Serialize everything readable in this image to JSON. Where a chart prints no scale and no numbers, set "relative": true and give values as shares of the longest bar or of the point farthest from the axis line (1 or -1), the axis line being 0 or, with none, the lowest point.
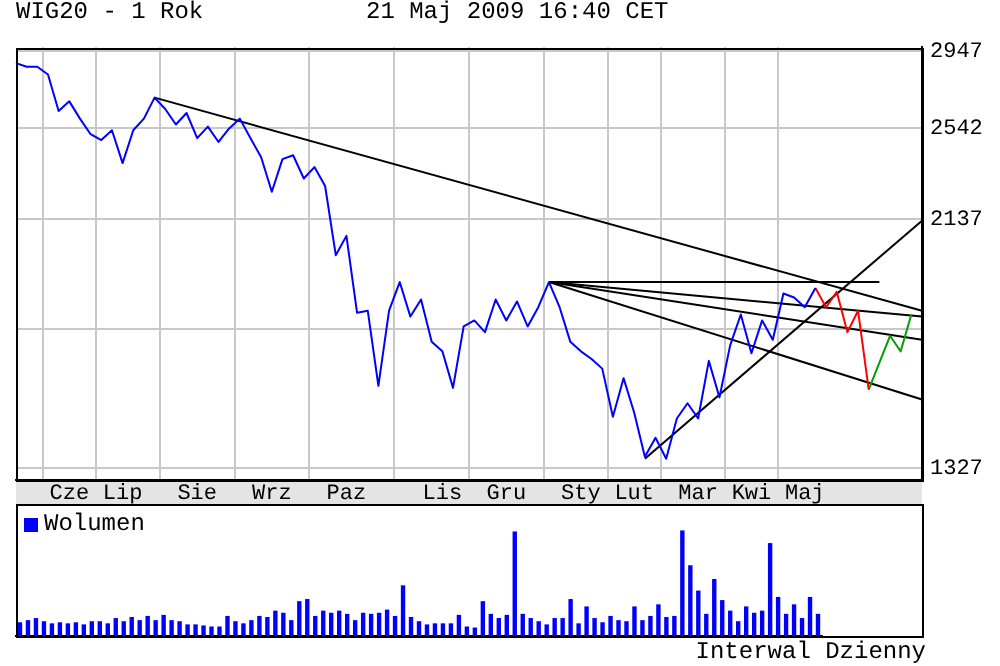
{
  "chart_data": [
    {
      "type": "line",
      "title": "WIG20 - 1 Rok",
      "subtitle": "21 Maj 2009 16:40 CET",
      "annotations": [
        "Interwal Dzienny"
      ],
      "log": true,
      "grid": true,
      "marker": "none",
      "line_style": "solid",
      "categories": [
        null,
        null,
        null,
        null,
        null,
        "Cze",
        null,
        null,
        null,
        null,
        "Lip",
        null,
        null,
        null,
        null,
        null,
        null,
        "Sie",
        null,
        null,
        null,
        null,
        null,
        null,
        "Wrz",
        null,
        null,
        null,
        null,
        null,
        null,
        "Paz",
        null,
        null,
        null,
        null,
        null,
        null,
        null,
        null,
        "Lis",
        null,
        null,
        null,
        null,
        null,
        "Gru",
        null,
        null,
        null,
        null,
        null,
        null,
        "Sty",
        null,
        null,
        null,
        null,
        "Lut",
        null,
        null,
        null,
        null,
        null,
        "Mar",
        null,
        null,
        null,
        null,
        "Kwi",
        null,
        null,
        null,
        null,
        "Maj",
        null,
        null,
        null,
        null,
        null,
        null,
        null,
        null,
        null,
        null,
        null
      ],
      "ylim": [
        1298,
        2969
      ],
      "yticks": [
        1327,
        {
          "value": 1732,
          "label": null
        },
        2137,
        2542,
        2947
      ],
      "series": [
        {
          "type": "line",
          "color": "#0000ff",
          "values": [
            2880,
            2860,
            2860,
            2818,
            2628,
            2677,
            2590,
            2514,
            2486,
            2533,
            2379,
            2533,
            2590,
            2696,
            2638,
            2561,
            2618,
            2495,
            2551,
            2477,
            2542,
            2590,
            2495,
            2406,
            2252,
            2397,
            2415,
            2310,
            2361,
            2277,
            1995,
            2070,
            1787,
            1794,
            1554,
            1794,
            1895,
            1774,
            1833,
            1691,
            1660,
            1548,
            1741,
            1761,
            1722,
            1833,
            1761,
            1826,
            1741,
            1806,
            1895,
            1806,
            1691,
            1660,
            1636,
            1606,
            1465,
            1577,
            1476,
            1357,
            1407,
            1352,
            1460,
            1503,
            1460,
            1630,
            1520,
            1679,
            1781,
            1654,
            1761,
            1697,
            1854,
            1840,
            1806,
            1874,
            null,
            null,
            null,
            null,
            null,
            null,
            null,
            null,
            null,
            null
          ]
        },
        {
          "type": "line",
          "color": "#ff0000",
          "values": [
            null,
            null,
            null,
            null,
            null,
            null,
            null,
            null,
            null,
            null,
            null,
            null,
            null,
            null,
            null,
            null,
            null,
            null,
            null,
            null,
            null,
            null,
            null,
            null,
            null,
            null,
            null,
            null,
            null,
            null,
            null,
            null,
            null,
            null,
            null,
            null,
            null,
            null,
            null,
            null,
            null,
            null,
            null,
            null,
            null,
            null,
            null,
            null,
            null,
            null,
            null,
            null,
            null,
            null,
            null,
            null,
            null,
            null,
            null,
            null,
            null,
            null,
            null,
            null,
            null,
            null,
            null,
            null,
            null,
            null,
            null,
            null,
            null,
            null,
            null,
            1874,
            1806,
            1860,
            1722,
            1794,
            1543,
            null,
            null,
            null,
            null,
            null
          ]
        },
        {
          "type": "line",
          "color": "#00a000",
          "values": [
            null,
            null,
            null,
            null,
            null,
            null,
            null,
            null,
            null,
            null,
            null,
            null,
            null,
            null,
            null,
            null,
            null,
            null,
            null,
            null,
            null,
            null,
            null,
            null,
            null,
            null,
            null,
            null,
            null,
            null,
            null,
            null,
            null,
            null,
            null,
            null,
            null,
            null,
            null,
            null,
            null,
            null,
            null,
            null,
            null,
            null,
            null,
            null,
            null,
            null,
            null,
            null,
            null,
            null,
            null,
            null,
            null,
            null,
            null,
            null,
            null,
            null,
            null,
            null,
            null,
            null,
            null,
            null,
            null,
            null,
            null,
            null,
            null,
            null,
            null,
            null,
            null,
            null,
            null,
            null,
            1543,
            null,
            1710,
            1660,
            1781,
            null
          ]
        },
        {
          "type": "line",
          "color": "#000000",
          "values": [
            null,
            null,
            null,
            null,
            null,
            null,
            null,
            null,
            null,
            null,
            null,
            null,
            null,
            2696,
            null,
            null,
            null,
            null,
            null,
            null,
            null,
            null,
            null,
            null,
            null,
            null,
            null,
            null,
            null,
            null,
            null,
            null,
            null,
            null,
            null,
            null,
            null,
            null,
            null,
            null,
            null,
            null,
            null,
            null,
            null,
            null,
            null,
            null,
            null,
            null,
            null,
            null,
            null,
            null,
            null,
            null,
            null,
            null,
            null,
            null,
            null,
            null,
            null,
            null,
            null,
            null,
            null,
            null,
            null,
            null,
            null,
            null,
            null,
            null,
            null,
            null,
            null,
            null,
            null,
            null,
            null,
            null,
            null,
            null,
            null,
            1794
          ]
        },
        {
          "type": "line",
          "color": "#000000",
          "values": [
            null,
            null,
            null,
            null,
            null,
            null,
            null,
            null,
            null,
            null,
            null,
            null,
            null,
            null,
            null,
            null,
            null,
            null,
            null,
            null,
            null,
            null,
            null,
            null,
            null,
            null,
            null,
            null,
            null,
            null,
            null,
            null,
            null,
            null,
            null,
            null,
            null,
            null,
            null,
            null,
            null,
            null,
            null,
            null,
            null,
            null,
            null,
            null,
            null,
            null,
            1895,
            null,
            null,
            null,
            null,
            null,
            null,
            null,
            null,
            null,
            null,
            null,
            null,
            null,
            null,
            null,
            null,
            null,
            null,
            null,
            null,
            null,
            null,
            null,
            null,
            null,
            null,
            null,
            null,
            null,
            null,
            1895,
            null,
            null,
            null,
            null
          ]
        },
        {
          "type": "line",
          "color": "#000000",
          "values": [
            null,
            null,
            null,
            null,
            null,
            null,
            null,
            null,
            null,
            null,
            null,
            null,
            null,
            null,
            null,
            null,
            null,
            null,
            null,
            null,
            null,
            null,
            null,
            null,
            null,
            null,
            null,
            null,
            null,
            null,
            null,
            null,
            null,
            null,
            null,
            null,
            null,
            null,
            null,
            null,
            null,
            null,
            null,
            null,
            null,
            null,
            null,
            null,
            null,
            null,
            1895,
            null,
            null,
            null,
            null,
            null,
            null,
            null,
            null,
            null,
            null,
            null,
            null,
            null,
            null,
            null,
            null,
            null,
            null,
            null,
            null,
            null,
            null,
            null,
            null,
            null,
            null,
            null,
            null,
            null,
            null,
            null,
            null,
            null,
            null,
            1774
          ]
        },
        {
          "type": "line",
          "color": "#000000",
          "values": [
            null,
            null,
            null,
            null,
            null,
            null,
            null,
            null,
            null,
            null,
            null,
            null,
            null,
            null,
            null,
            null,
            null,
            null,
            null,
            null,
            null,
            null,
            null,
            null,
            null,
            null,
            null,
            null,
            null,
            null,
            null,
            null,
            null,
            null,
            null,
            null,
            null,
            null,
            null,
            null,
            null,
            null,
            null,
            null,
            null,
            null,
            null,
            null,
            null,
            null,
            1895,
            null,
            null,
            null,
            null,
            null,
            null,
            null,
            null,
            null,
            null,
            null,
            null,
            null,
            null,
            null,
            null,
            null,
            null,
            null,
            null,
            null,
            null,
            null,
            null,
            null,
            null,
            null,
            null,
            null,
            null,
            null,
            null,
            null,
            null,
            1697
          ]
        },
        {
          "type": "line",
          "color": "#000000",
          "values": [
            null,
            null,
            null,
            null,
            null,
            null,
            null,
            null,
            null,
            null,
            null,
            null,
            null,
            null,
            null,
            null,
            null,
            null,
            null,
            null,
            null,
            null,
            null,
            null,
            null,
            null,
            null,
            null,
            null,
            null,
            null,
            null,
            null,
            null,
            null,
            null,
            null,
            null,
            null,
            null,
            null,
            null,
            null,
            null,
            null,
            null,
            null,
            null,
            null,
            null,
            1895,
            null,
            null,
            null,
            null,
            null,
            null,
            null,
            null,
            null,
            null,
            null,
            null,
            null,
            null,
            null,
            null,
            null,
            null,
            null,
            null,
            null,
            null,
            null,
            null,
            null,
            null,
            null,
            null,
            null,
            null,
            null,
            null,
            null,
            null,
            1514
          ]
        },
        {
          "type": "line",
          "color": "#000000",
          "values": [
            null,
            null,
            null,
            null,
            null,
            null,
            null,
            null,
            null,
            null,
            null,
            null,
            null,
            null,
            null,
            null,
            null,
            null,
            null,
            null,
            null,
            null,
            null,
            null,
            null,
            null,
            null,
            null,
            null,
            null,
            null,
            null,
            null,
            null,
            null,
            null,
            null,
            null,
            null,
            null,
            null,
            null,
            null,
            null,
            null,
            null,
            null,
            null,
            null,
            null,
            null,
            null,
            null,
            null,
            null,
            null,
            null,
            null,
            null,
            1352,
            null,
            null,
            null,
            null,
            null,
            null,
            null,
            null,
            null,
            null,
            null,
            null,
            null,
            null,
            null,
            null,
            null,
            null,
            null,
            null,
            null,
            null,
            null,
            null,
            null,
            2131
          ]
        }
      ]
    },
    {
      "type": "bar",
      "relative": true,
      "legend": "top left",
      "categories": [
        null,
        null,
        null,
        null,
        null,
        null,
        null,
        null,
        null,
        null,
        null,
        null,
        null,
        null,
        null,
        null,
        null,
        null,
        null,
        null,
        null,
        null,
        null,
        null,
        null,
        null,
        null,
        null,
        null,
        null,
        null,
        null,
        null,
        null,
        null,
        null,
        null,
        null,
        null,
        null,
        null,
        null,
        null,
        null,
        null,
        null,
        null,
        null,
        null,
        null,
        null,
        null,
        null,
        null,
        null,
        null,
        null,
        null,
        null,
        null,
        null,
        null,
        null,
        null,
        null,
        null,
        null,
        null,
        null,
        null,
        null,
        null,
        null,
        null,
        null,
        null,
        null,
        null,
        null,
        null,
        null,
        null,
        null,
        null,
        null,
        null,
        null,
        null,
        null,
        null,
        null,
        null,
        null,
        null,
        null,
        null,
        null,
        null,
        null,
        null,
        null
      ],
      "series": [
        {
          "name": "Wolumen",
          "color": "#0000ff",
          "values": [
            0.13,
            0.15,
            0.17,
            0.14,
            0.12,
            0.13,
            0.12,
            0.13,
            0.11,
            0.14,
            0.14,
            0.12,
            0.17,
            0.14,
            0.18,
            0.15,
            0.19,
            0.15,
            0.2,
            0.15,
            0.14,
            0.11,
            0.11,
            0.1,
            0.09,
            0.09,
            0.19,
            0.14,
            0.12,
            0.15,
            0.19,
            0.18,
            0.24,
            0.22,
            0.15,
            0.33,
            0.35,
            0.19,
            0.24,
            0.22,
            0.24,
            0.21,
            0.15,
            0.22,
            0.21,
            0.22,
            0.25,
            0.19,
            0.48,
            0.18,
            0.14,
            0.11,
            0.12,
            0.12,
            0.12,
            0.2,
            0.09,
            0.08,
            0.33,
            0.21,
            0.17,
            0.2,
            0.99,
            0.21,
            0.17,
            0.14,
            0.11,
            0.17,
            0.17,
            0.35,
            0.12,
            0.28,
            0.17,
            0.13,
            0.19,
            0.15,
            0.14,
            0.28,
            0.15,
            0.19,
            0.3,
            0.18,
            0.19,
            1,
            0.67,
            0.43,
            0.21,
            0.54,
            0.34,
            0.24,
            0.14,
            0.28,
            0.22,
            0.24,
            0.88,
            0.37,
            0.21,
            0.3,
            0.17,
            0.37,
            0.21
          ]
        }
      ]
    }
  ]
}
